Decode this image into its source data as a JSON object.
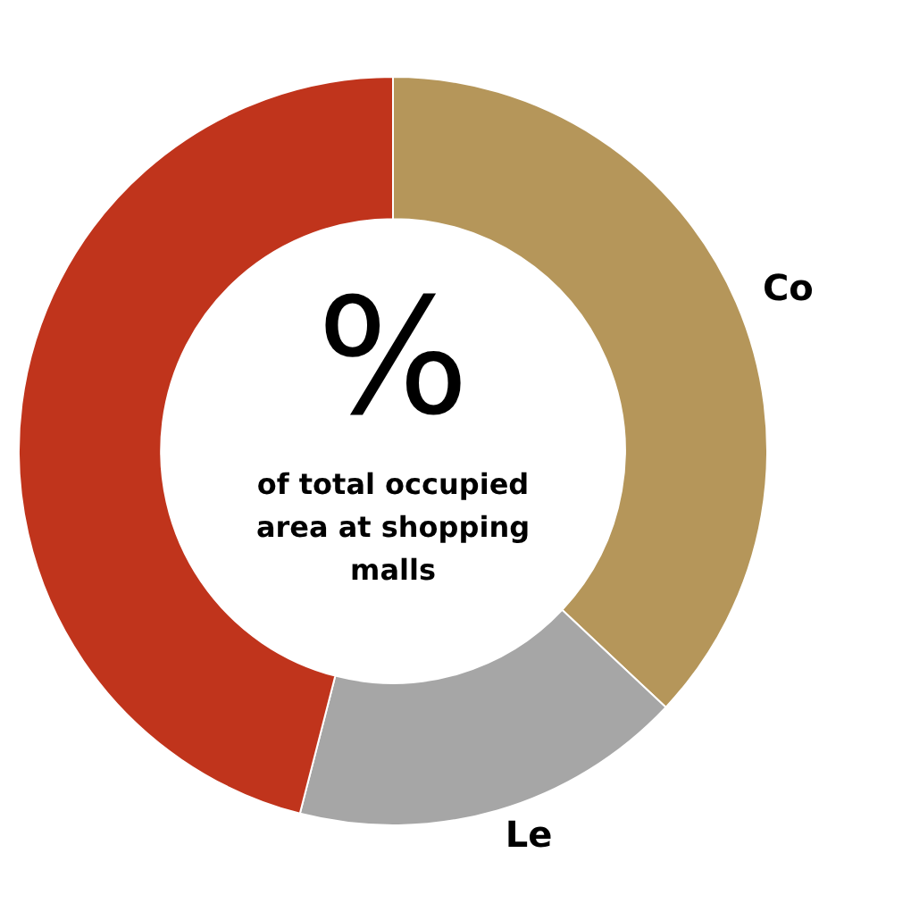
{
  "chart_data": {
    "type": "donut",
    "categories": [
      "Co",
      "Le",
      null
    ],
    "values": [
      37,
      17,
      46
    ],
    "colors": [
      "#b5965a",
      "#a6a6a6",
      "#c0341c"
    ],
    "annotations": [
      "%",
      "of total occupied area at shopping malls"
    ],
    "legend": false
  }
}
